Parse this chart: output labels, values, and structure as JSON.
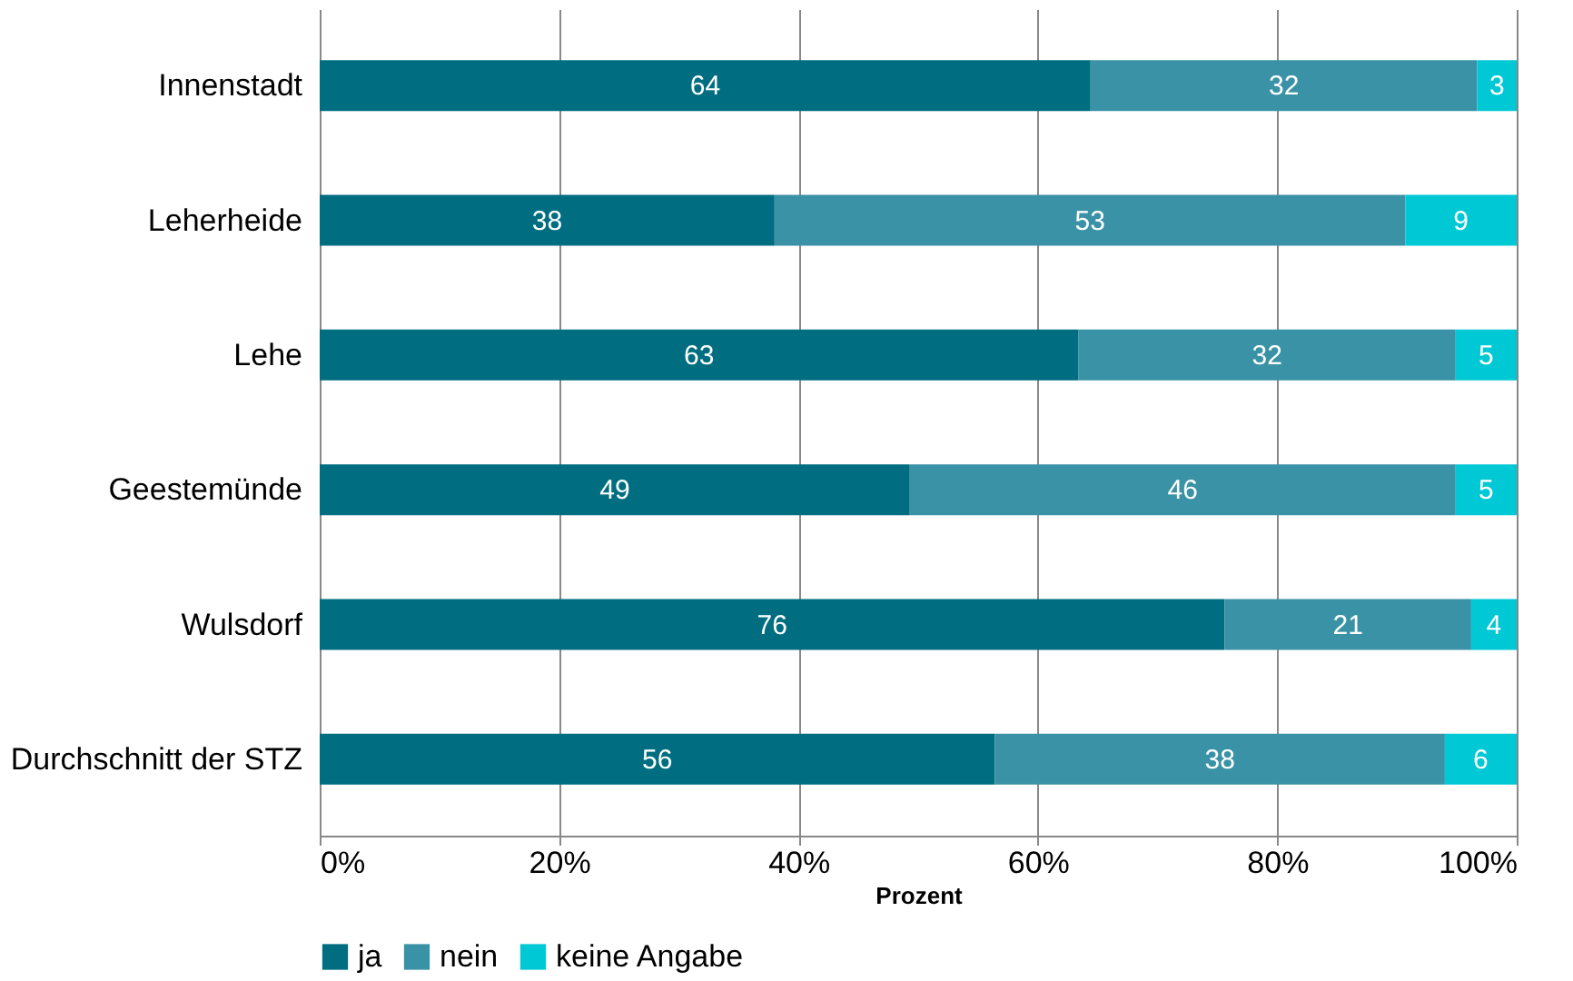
{
  "chart_data": {
    "type": "bar",
    "orientation": "horizontal",
    "stacked": true,
    "xlabel": "Prozent",
    "categories": [
      "Innenstadt",
      "Leherheide",
      "Lehe",
      "Geestemünde",
      "Wulsdorf",
      "Durchschnitt der STZ"
    ],
    "series": [
      {
        "name": "ja",
        "color": "#006e80",
        "values": [
          64.4,
          38,
          63.4,
          49.3,
          75.6,
          56.4
        ],
        "value_labels": [
          "64",
          "38",
          "63",
          "49",
          "76",
          "56"
        ]
      },
      {
        "name": "nein",
        "color": "#3a92a6",
        "values": [
          32.3,
          52.7,
          31.5,
          45.6,
          20.6,
          37.6
        ],
        "value_labels": [
          "32",
          "53",
          "32",
          "46",
          "21",
          "38"
        ]
      },
      {
        "name": "keine Angabe",
        "color": "#00c8d4",
        "values": [
          3.3,
          9.3,
          5.1,
          5.1,
          3.8,
          6
        ],
        "value_labels": [
          "3",
          "9",
          "5",
          "5",
          "4",
          "6"
        ]
      }
    ],
    "xlim": [
      0,
      100
    ],
    "xticks": [
      {
        "value": 0,
        "label": "0%"
      },
      {
        "value": 20,
        "label": "20%"
      },
      {
        "value": 40,
        "label": "40%"
      },
      {
        "value": 60,
        "label": "60%"
      },
      {
        "value": 80,
        "label": "80%"
      },
      {
        "value": 100,
        "label": "100%"
      }
    ],
    "grid": "x",
    "legend": "bottom"
  }
}
